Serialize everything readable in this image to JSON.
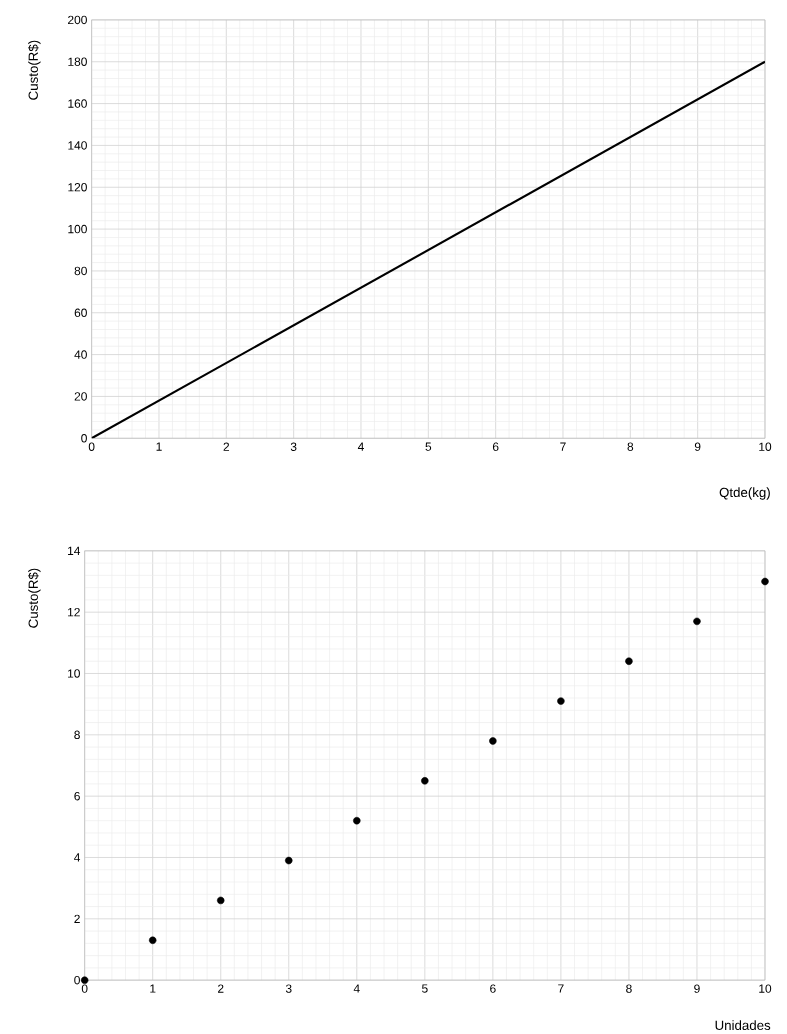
{
  "chart_data": [
    {
      "type": "line",
      "xlabel": "Qtde(kg)",
      "ylabel": "Custo(R$)",
      "x": [
        0,
        10
      ],
      "series": [
        {
          "color": "#000000",
          "values": [
            0,
            180
          ]
        }
      ],
      "xlim": [
        0,
        10
      ],
      "ylim": [
        0,
        200
      ],
      "xticks": [
        0,
        1,
        2,
        3,
        4,
        5,
        6,
        7,
        8,
        9,
        10
      ],
      "yticks": [
        0,
        20,
        40,
        60,
        80,
        100,
        120,
        140,
        160,
        180,
        200
      ],
      "grid": true,
      "marker": "none",
      "line_style": "solid"
    },
    {
      "type": "scatter",
      "xlabel": "Unidades",
      "ylabel": "Custo(R$)",
      "x": [
        0,
        1,
        2,
        3,
        4,
        5,
        6,
        7,
        8,
        9,
        10
      ],
      "series": [
        {
          "color": "#000000",
          "values": [
            0,
            1.3,
            2.6,
            3.9,
            5.2,
            6.5,
            7.8,
            9.1,
            10.4,
            11.7,
            13
          ]
        }
      ],
      "xlim": [
        0,
        10
      ],
      "ylim": [
        0,
        14
      ],
      "xticks": [
        0,
        1,
        2,
        3,
        4,
        5,
        6,
        7,
        8,
        9,
        10
      ],
      "yticks": [
        0,
        2,
        4,
        6,
        8,
        10,
        12,
        14
      ],
      "grid": true,
      "marker": "circle"
    }
  ]
}
